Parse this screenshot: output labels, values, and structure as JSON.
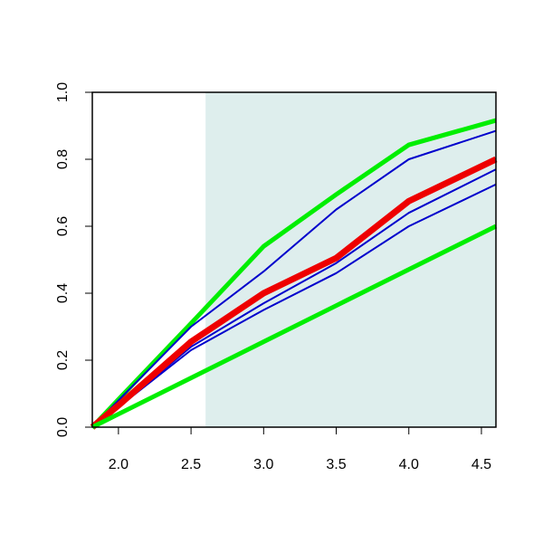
{
  "chart_data": {
    "type": "line",
    "x": [
      1.82,
      2.0,
      2.5,
      3.0,
      3.5,
      4.0,
      4.6
    ],
    "series": [
      {
        "color": "#00ee00",
        "width": 5,
        "values": [
          0,
          0.083,
          0.31,
          0.54,
          0.695,
          0.843,
          0.916
        ]
      },
      {
        "color": "#0000cc",
        "width": 2,
        "values": [
          0,
          0.08,
          0.3,
          0.465,
          0.65,
          0.8,
          0.885
        ]
      },
      {
        "color": "#0000cc",
        "width": 2,
        "values": [
          0,
          0.06,
          0.24,
          0.37,
          0.49,
          0.64,
          0.77
        ]
      },
      {
        "color": "#0000cc",
        "width": 2,
        "values": [
          0,
          0.06,
          0.23,
          0.35,
          0.46,
          0.6,
          0.725
        ]
      },
      {
        "color": "#ee0000",
        "width": 7,
        "values": [
          0,
          0.065,
          0.255,
          0.4,
          0.505,
          0.675,
          0.8
        ]
      },
      {
        "color": "#00ee00",
        "width": 5,
        "values": [
          0,
          0.039,
          0.147,
          0.255,
          0.363,
          0.471,
          0.6
        ]
      }
    ],
    "shade_from": 2.6,
    "shade_color": "#deeeed",
    "xlim": [
      1.82,
      4.6
    ],
    "ylim": [
      0,
      1
    ],
    "xticks": [
      {
        "value": 2,
        "label": "2.0"
      },
      2.5,
      {
        "value": 3,
        "label": "3.0"
      },
      3.5,
      {
        "value": 4,
        "label": "4.0"
      },
      4.5
    ],
    "yticks": [
      {
        "value": 0,
        "label": "0.0"
      },
      0.2,
      0.4,
      0.6,
      0.8,
      {
        "value": 1,
        "label": "1.0"
      }
    ]
  }
}
